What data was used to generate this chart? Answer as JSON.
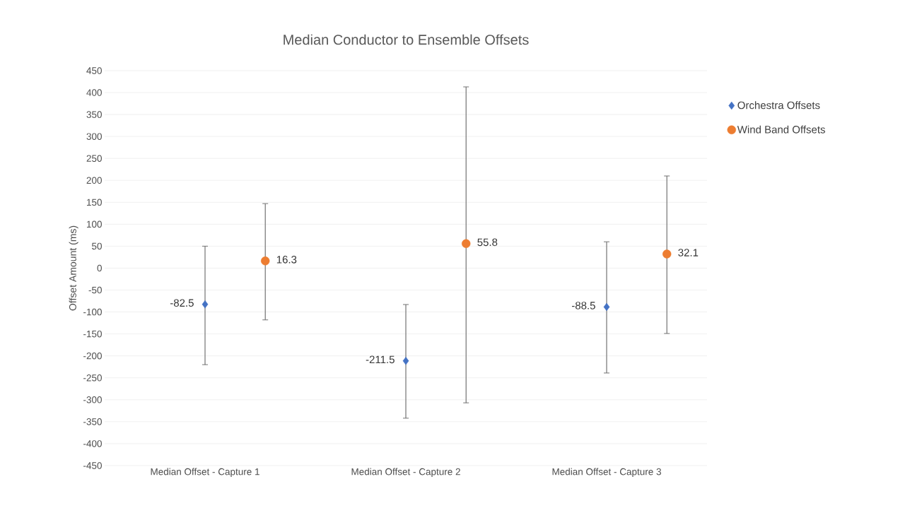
{
  "chart_data": {
    "type": "scatter",
    "title": "Median Conductor to Ensemble Offsets",
    "ylabel": "Offset Amount (ms)",
    "categories": [
      "Median Offset - Capture 1",
      "Median Offset - Capture 2",
      "Median Offset - Capture 3"
    ],
    "series": [
      {
        "name": "Orchestra Offsets",
        "color": "#4472c4",
        "marker": "diamond",
        "values": [
          -82.5,
          -211.5,
          -88.5
        ],
        "errors": [
          [
            -220,
            50
          ],
          [
            -342,
            -83
          ],
          [
            -239,
            60
          ]
        ]
      },
      {
        "name": "Wind Band Offsets",
        "color": "#ed7d31",
        "marker": "circle",
        "values": [
          16.3,
          55.8,
          32.1
        ],
        "errors": [
          [
            -118,
            147
          ],
          [
            -307,
            413
          ],
          [
            -149,
            210
          ]
        ]
      }
    ],
    "ylim": [
      -450,
      450
    ],
    "yticks": [
      -450,
      -400,
      -350,
      -300,
      -250,
      -200,
      -150,
      -100,
      -50,
      0,
      50,
      100,
      150,
      200,
      250,
      300,
      350,
      400,
      450
    ],
    "grid": "y",
    "legend": "right",
    "data_labels": true
  }
}
